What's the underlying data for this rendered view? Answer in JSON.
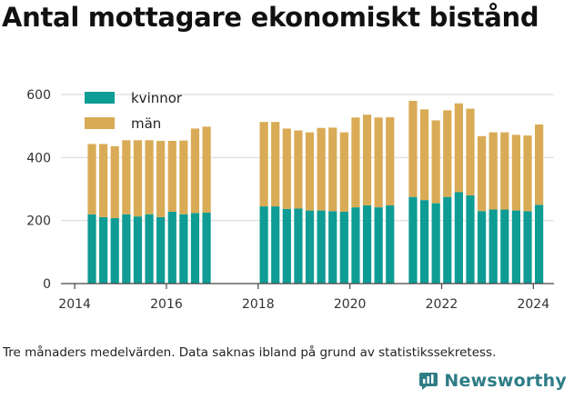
{
  "title": "Antal mottagare ekonomiskt bistånd",
  "caption": "Tre månaders medelvärden. Data saknas ibland på grund av statistikssekretess.",
  "brand": {
    "name": "Newsworthy",
    "icon": "newsworthy-logo-icon",
    "color": "#2e7d86"
  },
  "colors": {
    "kvinnor": "#0e9c94",
    "man": "#d9ab56",
    "grid": "#dddddd",
    "axis": "#444444"
  },
  "chart_data": {
    "type": "bar",
    "stacked": true,
    "title": "Antal mottagare ekonomiskt bistånd",
    "xlabel": "",
    "ylabel": "",
    "ylim": [
      0,
      600
    ],
    "xlim": [
      2013.7,
      2024.45
    ],
    "grid": "y",
    "legend": "top-left",
    "y_ticks": [
      "0",
      "200",
      "400",
      "600"
    ],
    "x_ticks": [
      "2014",
      "2016",
      "2018",
      "2020",
      "2022",
      "2024"
    ],
    "x": [
      2014.375,
      2014.625,
      2014.875,
      2015.125,
      2015.375,
      2015.625,
      2015.875,
      2016.125,
      2016.375,
      2016.625,
      2016.875,
      2018.125,
      2018.375,
      2018.625,
      2018.875,
      2019.125,
      2019.375,
      2019.625,
      2019.875,
      2020.125,
      2020.375,
      2020.625,
      2020.875,
      2021.375,
      2021.625,
      2021.875,
      2022.125,
      2022.375,
      2022.625,
      2022.875,
      2023.125,
      2023.375,
      2023.625,
      2023.875,
      2024.125
    ],
    "series": [
      {
        "name": "kvinnor",
        "values": [
          220,
          211,
          208,
          220,
          213,
          220,
          211,
          228,
          220,
          224,
          225,
          245,
          245,
          237,
          238,
          232,
          232,
          230,
          228,
          242,
          248,
          242,
          248,
          275,
          265,
          255,
          275,
          290,
          280,
          230,
          235,
          235,
          232,
          230,
          250
        ]
      },
      {
        "name": "män",
        "values": [
          223,
          232,
          228,
          235,
          242,
          235,
          242,
          225,
          234,
          268,
          273,
          268,
          268,
          255,
          248,
          248,
          262,
          265,
          252,
          285,
          288,
          285,
          280,
          305,
          288,
          263,
          275,
          282,
          275,
          238,
          245,
          245,
          240,
          240,
          255
        ]
      }
    ]
  }
}
